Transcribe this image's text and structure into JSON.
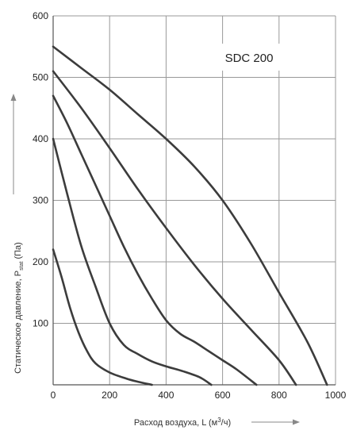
{
  "chart_data": {
    "type": "line",
    "title": "SDC 200",
    "xlabel_prefix": "Расход воздуха, L (м",
    "xlabel_sup": "3",
    "xlabel_suffix": "/ч)",
    "ylabel_prefix": "Статическое давление, P",
    "ylabel_sub": "stat",
    "ylabel_suffix": " (Па)",
    "xlim": [
      0,
      1000
    ],
    "ylim": [
      0,
      600
    ],
    "xticks": [
      0,
      200,
      400,
      600,
      800,
      1000
    ],
    "yticks": [
      100,
      200,
      300,
      400,
      500,
      600
    ],
    "grid": true,
    "colors": {
      "curve": "#3c3c3c",
      "grid": "#999999",
      "axis": "#555555",
      "arrow": "#888888"
    },
    "series": [
      {
        "x": [
          0,
          30,
          60,
          90,
          120,
          150,
          200,
          260,
          300,
          350
        ],
        "y": [
          220,
          175,
          125,
          85,
          55,
          35,
          20,
          10,
          5,
          0
        ]
      },
      {
        "x": [
          0,
          50,
          100,
          150,
          200,
          250,
          300,
          350,
          400,
          460,
          520,
          560
        ],
        "y": [
          400,
          310,
          225,
          160,
          100,
          65,
          50,
          38,
          30,
          22,
          12,
          0
        ]
      },
      {
        "x": [
          0,
          50,
          100,
          150,
          200,
          250,
          300,
          350,
          400,
          450,
          500,
          550,
          600,
          650,
          720
        ],
        "y": [
          470,
          425,
          375,
          325,
          275,
          225,
          180,
          140,
          105,
          83,
          70,
          55,
          40,
          25,
          0
        ]
      },
      {
        "x": [
          0,
          100,
          200,
          300,
          400,
          500,
          600,
          700,
          800,
          860
        ],
        "y": [
          510,
          450,
          385,
          318,
          255,
          195,
          140,
          90,
          40,
          0
        ]
      },
      {
        "x": [
          0,
          100,
          200,
          300,
          400,
          500,
          600,
          700,
          800,
          900,
          970
        ],
        "y": [
          550,
          515,
          480,
          440,
          400,
          355,
          300,
          230,
          150,
          70,
          0
        ]
      }
    ]
  }
}
